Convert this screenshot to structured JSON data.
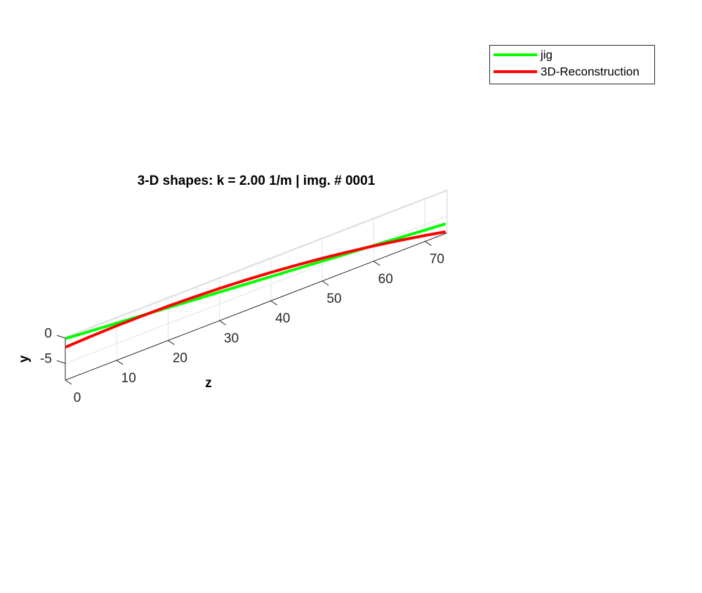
{
  "chart_data": {
    "type": "line3d",
    "title": "3-D shapes: k = 2.00 1/m | img. # 0001",
    "xlabel": "z",
    "ylabel": "y",
    "x": [
      0,
      5,
      10,
      15,
      20,
      25,
      30,
      35,
      40,
      45,
      50,
      55,
      60,
      65,
      70,
      74
    ],
    "series": [
      {
        "name": "jig",
        "color": "#00ff00",
        "values": [
          -0.1,
          -0.53,
          -0.95,
          -1.38,
          -1.8,
          -2.23,
          -2.65,
          -3.08,
          -3.5,
          -3.93,
          -4.35,
          -4.78,
          -5.2,
          -5.63,
          -6.05,
          -6.39
        ]
      },
      {
        "name": "3D-Reconstruction",
        "color": "#ff0000",
        "values": [
          -1.8,
          -1.6,
          -1.48,
          -1.46,
          -1.52,
          -1.68,
          -1.92,
          -2.26,
          -2.68,
          -3.2,
          -3.8,
          -4.5,
          -5.28,
          -6.16,
          -7.12,
          -7.96
        ]
      }
    ],
    "xlim": [
      0,
      74.3
    ],
    "xticks": [
      0,
      10,
      20,
      30,
      40,
      50,
      60,
      70
    ],
    "ylim": [
      -8.3,
      0.2
    ],
    "yticks": [
      -5,
      0
    ],
    "grid": true,
    "legend": "northeast"
  }
}
